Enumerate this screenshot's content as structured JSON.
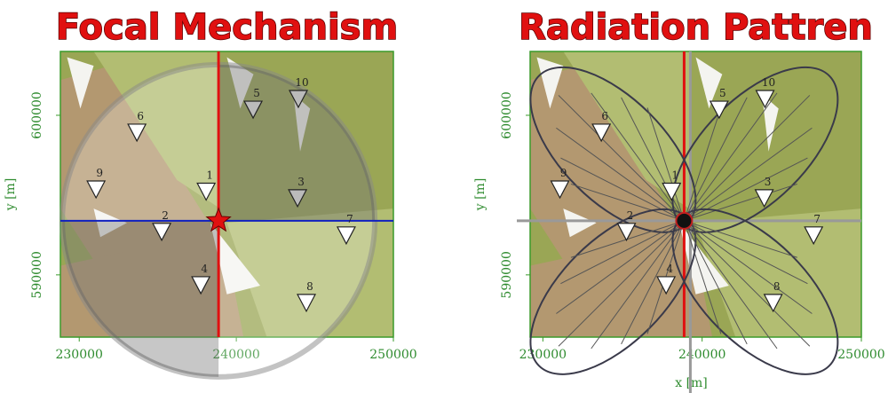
{
  "chart_data": [
    {
      "type": "scatter",
      "title": "Focal Mechanism",
      "ylabel": "y [m]",
      "xlim": [
        228800,
        250000
      ],
      "ylim": [
        586100,
        604000
      ],
      "xticks": [
        230000,
        240000,
        250000
      ],
      "yticks": [
        590000,
        600000
      ],
      "stations": {
        "labels": [
          "1",
          "2",
          "3",
          "4",
          "5",
          "6",
          "7",
          "8",
          "9",
          "10"
        ],
        "x": [
          238080,
          235250,
          243900,
          237740,
          241070,
          233670,
          247000,
          244460,
          231070,
          243950
        ],
        "y": [
          595300,
          592780,
          594890,
          589440,
          600440,
          599000,
          592560,
          588330,
          595440,
          601110
        ]
      },
      "event": {
        "x": 238870,
        "y": 593390
      }
    },
    {
      "type": "scatter",
      "title": "Radiation Pattren",
      "ylabel": "y [m]",
      "xlabel": "x [m]",
      "xlim": [
        229200,
        250000
      ],
      "ylim": [
        586100,
        604000
      ],
      "xticks": [
        230000,
        240000,
        250000
      ],
      "yticks": [
        590000,
        600000
      ],
      "stations": {
        "labels": [
          "1",
          "2",
          "3",
          "4",
          "5",
          "6",
          "7",
          "8",
          "9",
          "10"
        ],
        "x": [
          238080,
          235250,
          243900,
          237740,
          241070,
          233670,
          247000,
          244460,
          231070,
          243950
        ],
        "y": [
          595300,
          592780,
          594890,
          589440,
          600440,
          599000,
          592560,
          588330,
          595440,
          601110
        ]
      },
      "event": {
        "x": 238870,
        "y": 593390
      }
    }
  ]
}
